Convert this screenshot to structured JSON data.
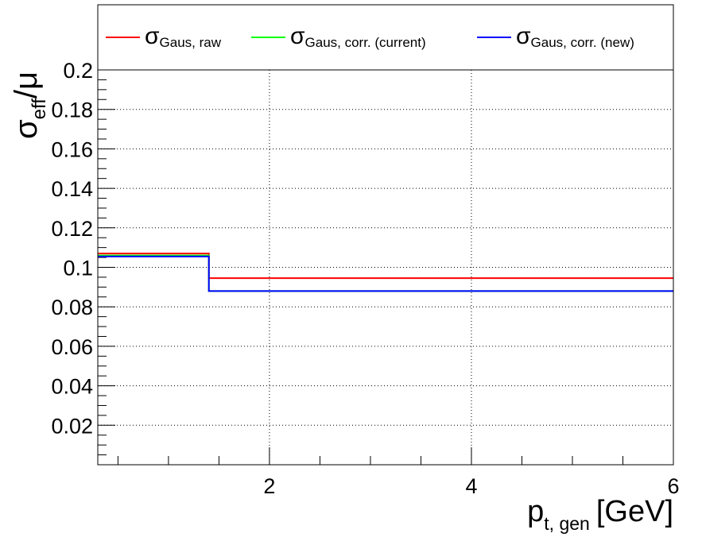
{
  "chart_data": {
    "type": "line",
    "step": true,
    "title": "",
    "xlabel": {
      "main": "p",
      "sub": "t, gen",
      "unit": "[GeV]"
    },
    "ylabel": {
      "main": "σ",
      "sub": "eff",
      "rest": "/μ"
    },
    "xlim": [
      0.3,
      6.0
    ],
    "ylim": [
      0.0,
      0.2
    ],
    "x_ticks": [
      2,
      4,
      6
    ],
    "x_tick_labels": [
      "2",
      "4",
      "6"
    ],
    "y_ticks": [
      0.02,
      0.04,
      0.06,
      0.08,
      0.1,
      0.12,
      0.14,
      0.16,
      0.18,
      0.2
    ],
    "y_tick_labels": [
      "0.02",
      "0.04",
      "0.06",
      "0.08",
      "0.1",
      "0.12",
      "0.14",
      "0.16",
      "0.18",
      "0.2"
    ],
    "grid": true,
    "legend_position": "top",
    "bin_edges": [
      0.3,
      1.4,
      6.0
    ],
    "series": [
      {
        "name_main": "σ",
        "name_sub": "Gaus, raw",
        "color": "#ff0000",
        "values": [
          0.107,
          0.0945
        ]
      },
      {
        "name_main": "σ",
        "name_sub": "Gaus, corr. (current)",
        "color": "#00ff00",
        "values": [
          0.106,
          0.088
        ]
      },
      {
        "name_main": "σ",
        "name_sub": "Gaus, corr. (new)",
        "color": "#0000ff",
        "values": [
          0.1055,
          0.088
        ]
      }
    ]
  }
}
